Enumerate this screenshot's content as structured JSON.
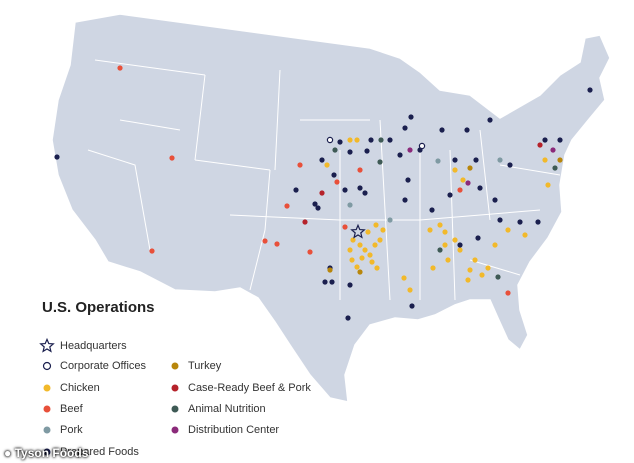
{
  "title": "U.S. Operations",
  "legend": [
    {
      "label": "Headquarters",
      "symbol": "star"
    },
    {
      "label": "Corporate Offices",
      "symbol": "ring"
    },
    {
      "label": "Chicken",
      "color": "#f2b92a"
    },
    {
      "label": "Beef",
      "color": "#e8503a"
    },
    {
      "label": "Pork",
      "color": "#7f9aa3"
    },
    {
      "label": "Prepared Foods",
      "color": "#1a1f4e"
    },
    {
      "label": "Turkey",
      "color": "#b8860b"
    },
    {
      "label": "Case-Ready Beef & Pork",
      "color": "#b5222a"
    },
    {
      "label": "Animal Nutrition",
      "color": "#3e5a55"
    },
    {
      "label": "Distribution Center",
      "color": "#8b2a7a"
    }
  ],
  "credit": "Tyson Foods"
}
